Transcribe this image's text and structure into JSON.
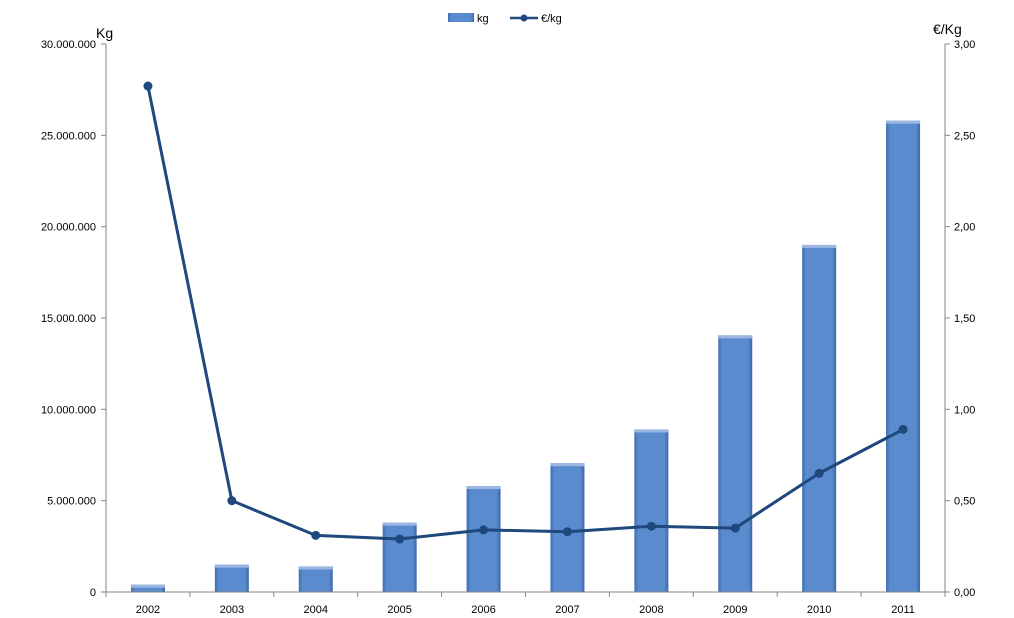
{
  "chart_data": {
    "type": "bar",
    "categories": [
      "2002",
      "2003",
      "2004",
      "2005",
      "2006",
      "2007",
      "2008",
      "2009",
      "2010",
      "2011"
    ],
    "series": [
      {
        "name": "kg",
        "type": "bar",
        "axis": "left",
        "color": "#5b8bcf",
        "values": [
          400000,
          1500000,
          1400000,
          3800000,
          5800000,
          7050000,
          8900000,
          14050000,
          19000000,
          25800000
        ]
      },
      {
        "name": "€/kg",
        "type": "line",
        "axis": "right",
        "color": "#1f497d",
        "values": [
          2.77,
          0.5,
          0.31,
          0.29,
          0.34,
          0.33,
          0.36,
          0.35,
          0.65,
          0.89
        ]
      }
    ],
    "ylabel_left": "Kg",
    "ylabel_right": "€/Kg",
    "ylim_left": [
      0,
      30000000
    ],
    "ylim_right": [
      0,
      3
    ],
    "yticks_left": [
      "0",
      "5.000.000",
      "10.000.000",
      "15.000.000",
      "20.000.000",
      "25.000.000",
      "30.000.000"
    ],
    "yticks_right": [
      "0,00",
      "0,50",
      "1,00",
      "1,50",
      "2,00",
      "2,50",
      "3,00"
    ],
    "legend_position": "top-center",
    "grid": false
  }
}
